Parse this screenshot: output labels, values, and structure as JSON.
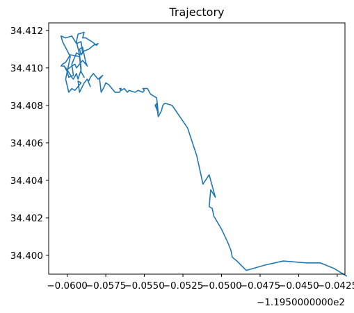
{
  "chart_data": {
    "type": "line",
    "title": "Trajectory",
    "xlabel": "",
    "ylabel": "",
    "x_offset_label": "−1.1950000000e2",
    "xlim": [
      -0.0612,
      -0.042
    ],
    "ylim": [
      34.399,
      34.4124
    ],
    "x_ticks": [
      -0.06,
      -0.0575,
      -0.055,
      -0.0525,
      -0.05,
      -0.0475,
      -0.045,
      -0.0425
    ],
    "x_tick_labels": [
      "−0.0600",
      "−0.0575",
      "−0.0550",
      "−0.0525",
      "−0.0500",
      "−0.0475",
      "−0.0450",
      "−0.0425"
    ],
    "y_ticks": [
      34.4,
      34.402,
      34.404,
      34.406,
      34.408,
      34.41,
      34.412
    ],
    "y_tick_labels": [
      "34.400",
      "34.402",
      "34.404",
      "34.406",
      "34.408",
      "34.410",
      "34.412"
    ],
    "grid": false,
    "legend": "none",
    "series": [
      {
        "color": "#1f77b4",
        "x": [
          -0.0419,
          -0.0427,
          -0.0436,
          -0.0445,
          -0.046,
          -0.0471,
          -0.0484,
          -0.049,
          -0.0493,
          -0.0494,
          -0.0496,
          -0.05,
          -0.0505,
          -0.0506,
          -0.0508,
          -0.0507,
          -0.0504,
          -0.0508,
          -0.0512,
          -0.0516,
          -0.0522,
          -0.0527,
          -0.0532,
          -0.0536,
          -0.0537,
          -0.0538,
          -0.0539,
          -0.0541,
          -0.0542,
          -0.0542,
          -0.0543,
          -0.0541,
          -0.0542,
          -0.0546,
          -0.0548,
          -0.0551,
          -0.055,
          -0.0551,
          -0.0554,
          -0.0556,
          -0.056,
          -0.0561,
          -0.0563,
          -0.0565,
          -0.0566,
          -0.0565,
          -0.0566,
          -0.0569,
          -0.057,
          -0.0573,
          -0.0575,
          -0.0576,
          -0.0578,
          -0.0579,
          -0.0577,
          -0.058,
          -0.0583,
          -0.0585,
          -0.0586,
          -0.0587,
          -0.0585,
          -0.0587,
          -0.0589,
          -0.0592,
          -0.0593,
          -0.0591,
          -0.0595,
          -0.0597,
          -0.0599,
          -0.0601,
          -0.0598,
          -0.0603,
          -0.0604,
          -0.0601,
          -0.0597,
          -0.0594,
          -0.0591,
          -0.059,
          -0.0592,
          -0.0594,
          -0.0593,
          -0.0589,
          -0.059,
          -0.0588,
          -0.0584,
          -0.0581,
          -0.058,
          -0.0583,
          -0.0586,
          -0.0589,
          -0.0591,
          -0.0592,
          -0.059,
          -0.0588,
          -0.0587,
          -0.059,
          -0.0593,
          -0.0594,
          -0.0595,
          -0.0597,
          -0.06,
          -0.0602,
          -0.06,
          -0.0599,
          -0.0596,
          -0.0597,
          -0.0594,
          -0.0592,
          -0.0591,
          -0.0591,
          -0.0593,
          -0.0594,
          -0.0596,
          -0.0597,
          -0.06,
          -0.0602,
          -0.0604,
          -0.0603,
          -0.0601,
          -0.0598,
          -0.0592,
          -0.0591,
          -0.0589
        ],
        "y": [
          34.3989,
          34.3993,
          34.3996,
          34.3996,
          34.3997,
          34.3995,
          34.3992,
          34.3997,
          34.3999,
          34.4003,
          34.4007,
          34.4014,
          34.4021,
          34.4025,
          34.4026,
          34.4035,
          34.4031,
          34.4043,
          34.4038,
          34.4053,
          34.4068,
          34.4074,
          34.408,
          34.4081,
          34.4081,
          34.408,
          34.4077,
          34.4074,
          34.408,
          34.4081,
          34.408,
          34.4076,
          34.4084,
          34.4086,
          34.4089,
          34.4089,
          34.4088,
          34.4087,
          34.4088,
          34.4087,
          34.4088,
          34.4087,
          34.4089,
          34.4088,
          34.4089,
          34.4089,
          34.4087,
          34.4087,
          34.4088,
          34.4091,
          34.4092,
          34.409,
          34.4087,
          34.4094,
          34.4096,
          34.4094,
          34.4097,
          34.4095,
          34.4093,
          34.4094,
          34.409,
          34.4094,
          34.4092,
          34.4087,
          34.4093,
          34.4092,
          34.4088,
          34.4089,
          34.4087,
          34.4094,
          34.4106,
          34.4114,
          34.4117,
          34.4116,
          34.4117,
          34.4113,
          34.4114,
          34.4108,
          34.4107,
          34.4114,
          34.4118,
          34.4119,
          34.4116,
          34.4116,
          34.4114,
          34.4112,
          34.4113,
          34.4112,
          34.411,
          34.4109,
          34.4107,
          34.411,
          34.4111,
          34.4103,
          34.4101,
          34.4104,
          34.4101,
          34.41,
          34.4102,
          34.4101,
          34.4099,
          34.4101,
          34.4098,
          34.4095,
          34.4096,
          34.4102,
          34.4108,
          34.4107,
          34.41,
          34.4099,
          34.4094,
          34.4097,
          34.4094,
          34.4095,
          34.4099,
          34.4101,
          34.4101,
          34.4102,
          34.4103,
          34.4107,
          34.4106,
          34.4098,
          34.4095
        ]
      }
    ]
  }
}
